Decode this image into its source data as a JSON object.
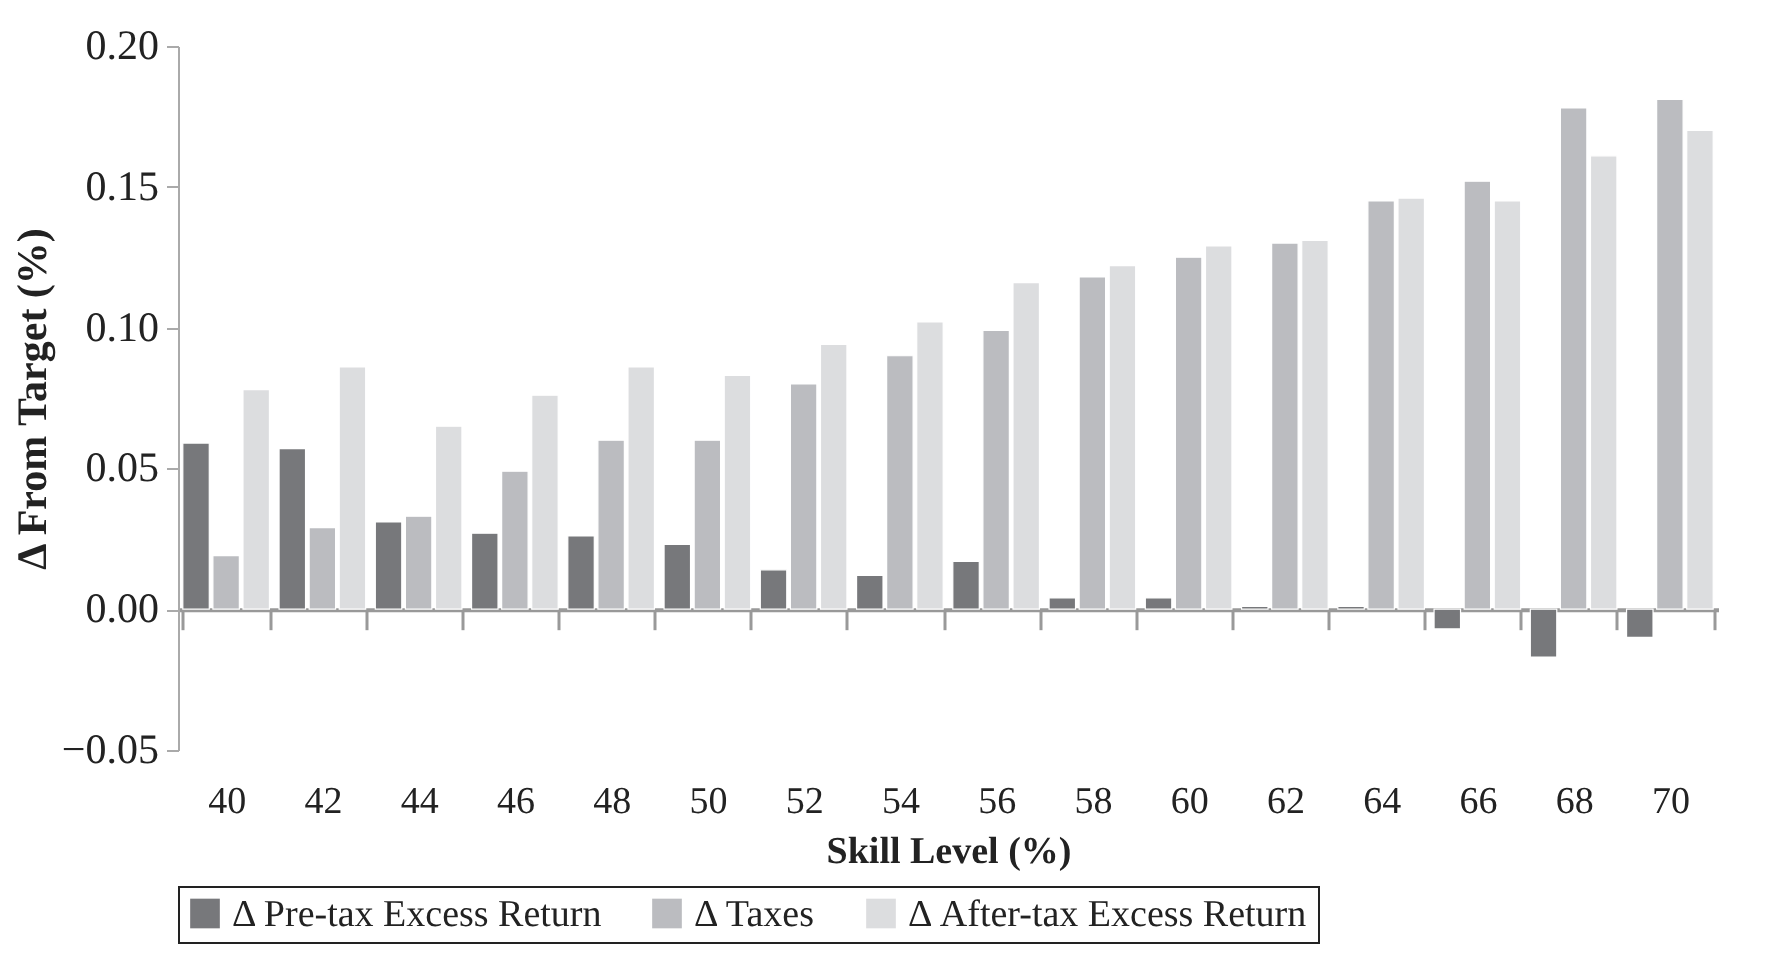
{
  "chart_data": {
    "type": "bar",
    "xlabel": "Skill Level (%)",
    "ylabel": "Δ From Target (%)",
    "categories": [
      "40",
      "42",
      "44",
      "46",
      "48",
      "50",
      "52",
      "54",
      "56",
      "58",
      "60",
      "62",
      "64",
      "66",
      "68",
      "70"
    ],
    "series": [
      {
        "name": "Δ Pre-tax Excess Return",
        "color": "#77787b",
        "values": [
          0.059,
          0.057,
          0.031,
          0.027,
          0.026,
          0.023,
          0.014,
          0.012,
          0.017,
          0.004,
          0.004,
          0.001,
          0.001,
          -0.007,
          -0.017,
          -0.01
        ]
      },
      {
        "name": "Δ Taxes",
        "color": "#bbbcc0",
        "values": [
          0.019,
          0.029,
          0.033,
          0.049,
          0.06,
          0.06,
          0.08,
          0.09,
          0.099,
          0.118,
          0.125,
          0.13,
          0.145,
          0.152,
          0.178,
          0.181
        ]
      },
      {
        "name": "Δ After-tax Excess Return",
        "color": "#dcdddf",
        "values": [
          0.078,
          0.086,
          0.065,
          0.076,
          0.086,
          0.083,
          0.094,
          0.102,
          0.116,
          0.122,
          0.129,
          0.131,
          0.146,
          0.145,
          0.161,
          0.17
        ]
      }
    ],
    "ylim": [
      -0.05,
      0.2
    ],
    "yticks": [
      {
        "value": -0.05,
        "label": "−0.05"
      },
      {
        "value": 0,
        "label": "0.00"
      },
      {
        "value": 0.05,
        "label": "0.05"
      },
      {
        "value": 0.1,
        "label": "0.10"
      },
      {
        "value": 0.15,
        "label": "0.15"
      },
      {
        "value": 0.2,
        "label": "0.20"
      }
    ],
    "legend": "bottom"
  }
}
